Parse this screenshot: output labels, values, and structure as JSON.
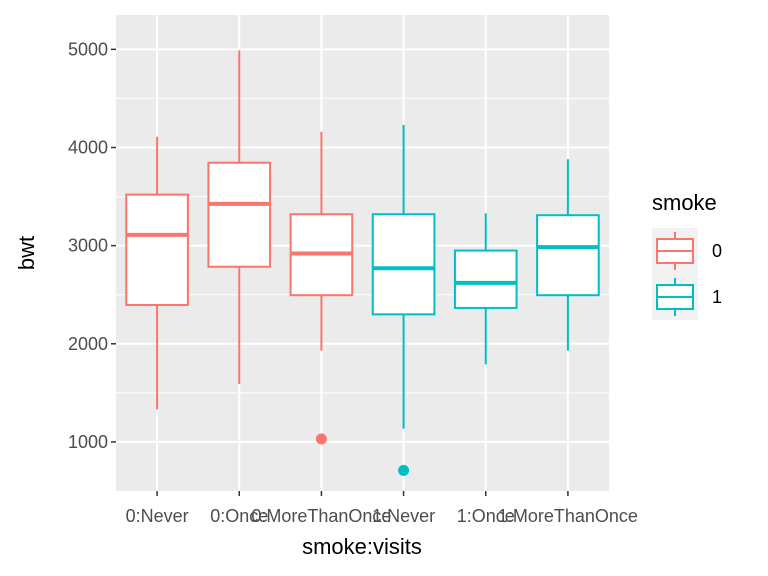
{
  "chart_data": {
    "type": "boxplot",
    "xlabel": "smoke:visits",
    "ylabel": "bwt",
    "ylim": [
      500,
      5350
    ],
    "y_ticks": [
      1000,
      2000,
      3000,
      4000,
      5000
    ],
    "categories": [
      "0:Never",
      "0:Once",
      "0:MoreThanOnce",
      "1:Never",
      "1:Once",
      "1:MoreThanOnce"
    ],
    "groups": [
      "0",
      "0",
      "0",
      "1",
      "1",
      "1"
    ],
    "boxes": [
      {
        "label": "0:Never",
        "group": "0",
        "whisker_low": 1330,
        "q1": 2395,
        "median": 3110,
        "q3": 3520,
        "whisker_high": 4110,
        "outliers": []
      },
      {
        "label": "0:Once",
        "group": "0",
        "whisker_low": 1590,
        "q1": 2785,
        "median": 3425,
        "q3": 3845,
        "whisker_high": 4990,
        "outliers": []
      },
      {
        "label": "0:MoreThanOnce",
        "group": "0",
        "whisker_low": 1930,
        "q1": 2495,
        "median": 2920,
        "q3": 3320,
        "whisker_high": 4160,
        "outliers": [
          1030
        ]
      },
      {
        "label": "1:Never",
        "group": "1",
        "whisker_low": 1135,
        "q1": 2300,
        "median": 2770,
        "q3": 3320,
        "whisker_high": 4230,
        "outliers": [
          710
        ]
      },
      {
        "label": "1:Once",
        "group": "1",
        "whisker_low": 1790,
        "q1": 2365,
        "median": 2620,
        "q3": 2950,
        "whisker_high": 3330,
        "outliers": []
      },
      {
        "label": "1:MoreThanOnce",
        "group": "1",
        "whisker_low": 1930,
        "q1": 2495,
        "median": 2985,
        "q3": 3310,
        "whisker_high": 3880,
        "outliers": []
      }
    ],
    "legend": {
      "title": "smoke",
      "placement": "right",
      "entries": [
        {
          "label": "0",
          "color": "#F8766D"
        },
        {
          "label": "1",
          "color": "#00BFC4"
        }
      ]
    },
    "colors": {
      "0": "#F8766D",
      "1": "#00BFC4"
    },
    "panel_background": "#EBEBEB",
    "grid": true
  }
}
